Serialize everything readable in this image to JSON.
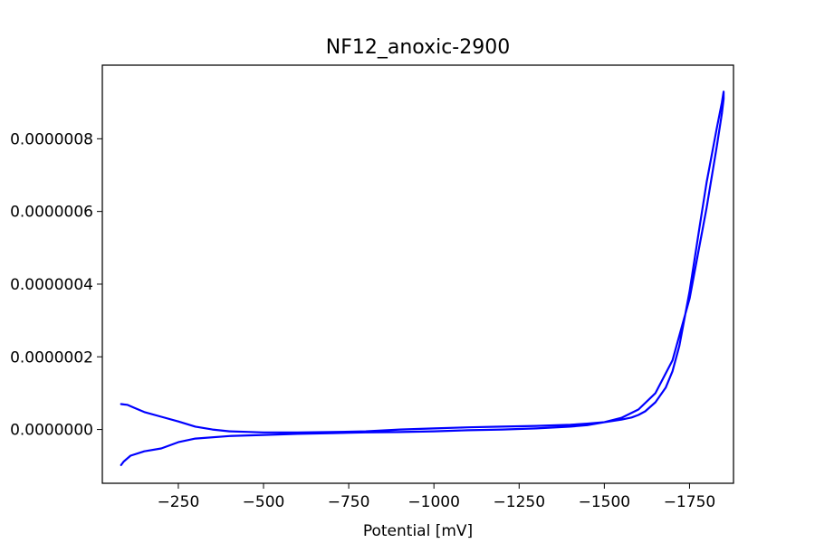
{
  "chart_data": {
    "type": "line",
    "title": "NF12_anoxic-2900",
    "xlabel": "Potential [mV]",
    "ylabel": "",
    "x_axis_inverted": true,
    "xlim": [
      -27,
      -1879
    ],
    "ylim": [
      -1.48e-07,
      1.0026e-06
    ],
    "grid": false,
    "x_ticks": [
      {
        "value": -250,
        "label": "−250"
      },
      {
        "value": -500,
        "label": "−500"
      },
      {
        "value": -750,
        "label": "−750"
      },
      {
        "value": -1000,
        "label": "−1000"
      },
      {
        "value": -1250,
        "label": "−1250"
      },
      {
        "value": -1500,
        "label": "−1500"
      },
      {
        "value": -1750,
        "label": "−1750"
      }
    ],
    "y_ticks": [
      {
        "value": 0,
        "label": "0.0000000"
      },
      {
        "value": 2e-07,
        "label": "0.0000002"
      },
      {
        "value": 4e-07,
        "label": "0.0000004"
      },
      {
        "value": 6e-07,
        "label": "0.0000006"
      },
      {
        "value": 8e-07,
        "label": "0.0000008"
      }
    ],
    "series": [
      {
        "color": "#0000ff",
        "x": [
          -82,
          -90,
          -110,
          -150,
          -200,
          -250,
          -300,
          -400,
          -500,
          -600,
          -700,
          -800,
          -900,
          -1000,
          -1100,
          -1200,
          -1300,
          -1400,
          -1450,
          -1500,
          -1550,
          -1600,
          -1650,
          -1700,
          -1750,
          -1800,
          -1830,
          -1845,
          -1850,
          -1850,
          -1845,
          -1830,
          -1800,
          -1780,
          -1750,
          -1720,
          -1700,
          -1680,
          -1650,
          -1620,
          -1600,
          -1580,
          -1550,
          -1500,
          -1450,
          -1400,
          -1300,
          -1200,
          -1100,
          -1000,
          -900,
          -800,
          -700,
          -600,
          -500,
          -400,
          -350,
          -300,
          -250,
          -200,
          -150,
          -120,
          -100,
          -90,
          -82
        ],
        "y": [
          -9.8e-08,
          -8.8e-08,
          -7.2e-08,
          -6e-08,
          -5.2e-08,
          -3.5e-08,
          -2.5e-08,
          -1.8e-08,
          -1.5e-08,
          -1.2e-08,
          -1e-08,
          -8e-09,
          -7e-09,
          -5e-09,
          -2e-09,
          0.0,
          3e-09,
          8e-09,
          1.2e-08,
          2e-08,
          3.2e-08,
          5.5e-08,
          1e-07,
          1.9e-07,
          3.6e-07,
          6.1e-07,
          7.8e-07,
          8.7e-07,
          9.1e-07,
          9.3e-07,
          9e-07,
          8.3e-07,
          6.8e-07,
          5.6e-07,
          3.8e-07,
          2.3e-07,
          1.6e-07,
          1.15e-07,
          7.5e-08,
          5e-08,
          4e-08,
          3.3e-08,
          2.7e-08,
          2e-08,
          1.6e-08,
          1.3e-08,
          1e-08,
          8e-09,
          6e-09,
          3e-09,
          0.0,
          -5e-09,
          -7e-09,
          -8e-09,
          -8e-09,
          -5e-09,
          0.0,
          8e-09,
          2.2e-08,
          3.5e-08,
          4.8e-08,
          6e-08,
          6.8e-08,
          6.9e-08,
          7e-08
        ]
      }
    ]
  }
}
